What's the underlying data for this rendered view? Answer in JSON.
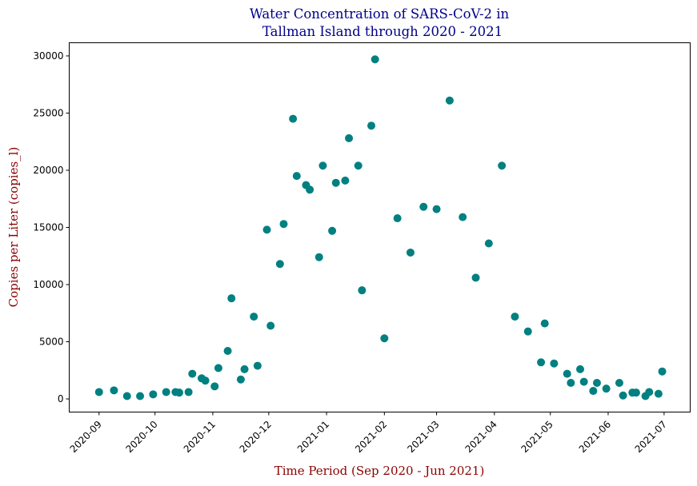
{
  "chart_data": {
    "type": "scatter",
    "title": "Water Concentration of SARS-CoV-2 in\n Tallman Island through 2020 - 2021",
    "title_lines": [
      "Water Concentration of SARS-CoV-2 in",
      "Tallman Island through 2020 - 2021"
    ],
    "xlabel": "Time Period (Sep 2020 - Jun 2021)",
    "ylabel": "Copies per Liter (copies_l)",
    "marker_color": "#008080",
    "title_color": "#00008b",
    "label_color": "#8b0000",
    "grid": false,
    "legend": "none",
    "xlim": [
      "2020-08-16",
      "2021-07-15"
    ],
    "ylim": [
      -1150,
      31150
    ],
    "x_ticks": [
      "2020-09",
      "2020-10",
      "2020-11",
      "2020-12",
      "2021-01",
      "2021-02",
      "2021-03",
      "2021-04",
      "2021-05",
      "2021-06",
      "2021-07"
    ],
    "x_tick_dates": [
      "2020-09-01",
      "2020-10-01",
      "2020-11-01",
      "2020-12-01",
      "2021-01-01",
      "2021-02-01",
      "2021-03-01",
      "2021-04-01",
      "2021-05-01",
      "2021-06-01",
      "2021-07-01"
    ],
    "y_ticks": [
      0,
      5000,
      10000,
      15000,
      20000,
      25000,
      30000
    ],
    "points": [
      {
        "x": "2020-09-01",
        "y": 600
      },
      {
        "x": "2020-09-09",
        "y": 750
      },
      {
        "x": "2020-09-16",
        "y": 250
      },
      {
        "x": "2020-09-23",
        "y": 250
      },
      {
        "x": "2020-09-30",
        "y": 400
      },
      {
        "x": "2020-10-07",
        "y": 600
      },
      {
        "x": "2020-10-12",
        "y": 600
      },
      {
        "x": "2020-10-14",
        "y": 550
      },
      {
        "x": "2020-10-19",
        "y": 600
      },
      {
        "x": "2020-10-21",
        "y": 2200
      },
      {
        "x": "2020-10-26",
        "y": 1800
      },
      {
        "x": "2020-10-28",
        "y": 1600
      },
      {
        "x": "2020-11-02",
        "y": 1100
      },
      {
        "x": "2020-11-04",
        "y": 2700
      },
      {
        "x": "2020-11-09",
        "y": 4200
      },
      {
        "x": "2020-11-11",
        "y": 8800
      },
      {
        "x": "2020-11-16",
        "y": 1700
      },
      {
        "x": "2020-11-18",
        "y": 2600
      },
      {
        "x": "2020-11-23",
        "y": 7200
      },
      {
        "x": "2020-11-25",
        "y": 2900
      },
      {
        "x": "2020-11-30",
        "y": 14800
      },
      {
        "x": "2020-12-02",
        "y": 6400
      },
      {
        "x": "2020-12-07",
        "y": 11800
      },
      {
        "x": "2020-12-09",
        "y": 15300
      },
      {
        "x": "2020-12-14",
        "y": 24500
      },
      {
        "x": "2020-12-16",
        "y": 19500
      },
      {
        "x": "2020-12-21",
        "y": 18700
      },
      {
        "x": "2020-12-23",
        "y": 18300
      },
      {
        "x": "2020-12-28",
        "y": 12400
      },
      {
        "x": "2020-12-30",
        "y": 20400
      },
      {
        "x": "2021-01-04",
        "y": 14700
      },
      {
        "x": "2021-01-06",
        "y": 18900
      },
      {
        "x": "2021-01-11",
        "y": 19100
      },
      {
        "x": "2021-01-13",
        "y": 22800
      },
      {
        "x": "2021-01-18",
        "y": 20400
      },
      {
        "x": "2021-01-20",
        "y": 9500
      },
      {
        "x": "2021-01-25",
        "y": 23900
      },
      {
        "x": "2021-01-27",
        "y": 29700
      },
      {
        "x": "2021-02-01",
        "y": 5300
      },
      {
        "x": "2021-02-08",
        "y": 15800
      },
      {
        "x": "2021-02-15",
        "y": 12800
      },
      {
        "x": "2021-02-22",
        "y": 16800
      },
      {
        "x": "2021-03-01",
        "y": 16600
      },
      {
        "x": "2021-03-08",
        "y": 26100
      },
      {
        "x": "2021-03-15",
        "y": 15900
      },
      {
        "x": "2021-03-22",
        "y": 10600
      },
      {
        "x": "2021-03-29",
        "y": 13600
      },
      {
        "x": "2021-04-05",
        "y": 20400
      },
      {
        "x": "2021-04-12",
        "y": 7200
      },
      {
        "x": "2021-04-19",
        "y": 5900
      },
      {
        "x": "2021-04-26",
        "y": 3200
      },
      {
        "x": "2021-04-28",
        "y": 6600
      },
      {
        "x": "2021-05-03",
        "y": 3100
      },
      {
        "x": "2021-05-10",
        "y": 2200
      },
      {
        "x": "2021-05-12",
        "y": 1400
      },
      {
        "x": "2021-05-17",
        "y": 2600
      },
      {
        "x": "2021-05-19",
        "y": 1500
      },
      {
        "x": "2021-05-24",
        "y": 700
      },
      {
        "x": "2021-05-26",
        "y": 1400
      },
      {
        "x": "2021-05-31",
        "y": 900
      },
      {
        "x": "2021-06-07",
        "y": 1400
      },
      {
        "x": "2021-06-09",
        "y": 300
      },
      {
        "x": "2021-06-14",
        "y": 550
      },
      {
        "x": "2021-06-16",
        "y": 550
      },
      {
        "x": "2021-06-21",
        "y": 250
      },
      {
        "x": "2021-06-23",
        "y": 600
      },
      {
        "x": "2021-06-28",
        "y": 450
      },
      {
        "x": "2021-06-30",
        "y": 2400
      }
    ]
  }
}
